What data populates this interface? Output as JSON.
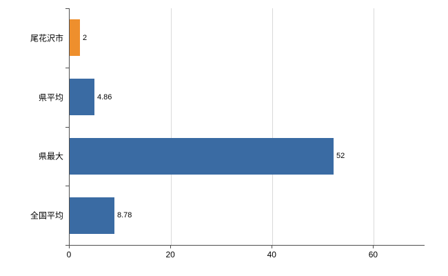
{
  "chart_data": {
    "type": "bar",
    "orientation": "horizontal",
    "title": "",
    "xlabel": "",
    "ylabel": "",
    "categories": [
      "尾花沢市",
      "県平均",
      "県最大",
      "全国平均"
    ],
    "values": [
      2,
      4.86,
      52,
      8.78
    ],
    "value_labels": [
      "2",
      "4.86",
      "52",
      "8.78"
    ],
    "series": [
      {
        "name": "value",
        "values": [
          2,
          4.86,
          52,
          8.78
        ],
        "colors": [
          "#ee8f2d",
          "#3a6ba3",
          "#3a6ba3",
          "#3a6ba3"
        ]
      }
    ],
    "xticks": [
      0,
      20,
      40,
      60
    ],
    "xtick_labels": [
      "0",
      "20",
      "40",
      "60"
    ],
    "xlim": [
      0,
      70
    ],
    "grid": true,
    "legend": "none",
    "background": "#ffffff",
    "gridline_color": "#d9d9d9",
    "axis_color": "#4d4d4d",
    "bar_colors": {
      "highlight": "#ee8f2d",
      "default": "#3a6ba3"
    }
  }
}
